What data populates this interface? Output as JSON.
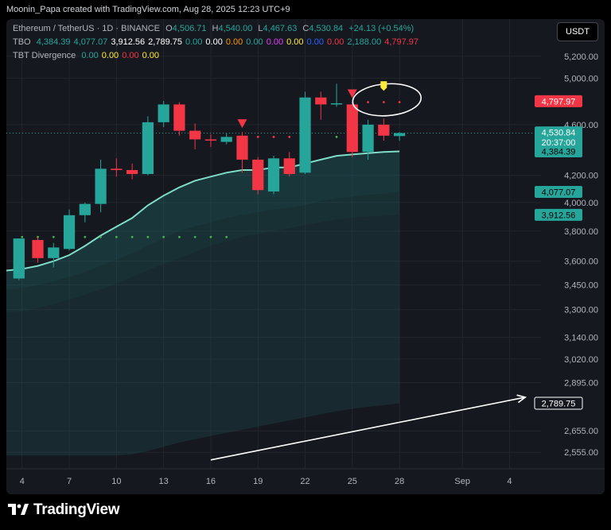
{
  "credit": "Moonin_Papa created with TradingView.com, Aug 28, 2025 12:23 UTC+9",
  "legend": {
    "symbol": "Ethereum / TetherUS · 1D · BINANCE",
    "o_label": "O",
    "o_value": "4,506.71",
    "h_label": "H",
    "h_value": "4,540.00",
    "l_label": "L",
    "l_value": "4,467.63",
    "c_label": "C",
    "c_value": "4,530.84",
    "change": "+24.13 (+0.54%)",
    "tbo_name": "TBO",
    "tbo_values": [
      {
        "v": "4,384.39",
        "color": "#26a69a"
      },
      {
        "v": "4,077.07",
        "color": "#26a69a"
      },
      {
        "v": "3,912.56",
        "color": "#ffffff"
      },
      {
        "v": "2,789.75",
        "color": "#ffffff"
      },
      {
        "v": "0.00",
        "color": "#26a69a"
      },
      {
        "v": "0.00",
        "color": "#ffffff"
      },
      {
        "v": "0.00",
        "color": "#ff9800"
      },
      {
        "v": "0.00",
        "color": "#26a69a"
      },
      {
        "v": "0.00",
        "color": "#e040fb"
      },
      {
        "v": "0.00",
        "color": "#ffeb3b"
      },
      {
        "v": "0.00",
        "color": "#2962ff"
      },
      {
        "v": "0.00",
        "color": "#f23645"
      },
      {
        "v": "2,188.00",
        "color": "#26a69a"
      },
      {
        "v": "4,797.97",
        "color": "#f23645"
      }
    ],
    "div_name": "TBT Divergence",
    "div_values": [
      {
        "v": "0.00",
        "color": "#26a69a"
      },
      {
        "v": "0.00",
        "color": "#ffeb3b"
      },
      {
        "v": "0.00",
        "color": "#f23645"
      },
      {
        "v": "0.00",
        "color": "#ffeb3b"
      }
    ]
  },
  "currency_button": "USDT",
  "brand": "TradingView",
  "colors": {
    "up": "#26a69a",
    "down": "#f23645",
    "background": "#16181f",
    "grid": "#22252e",
    "band_line": "#7fdcc8",
    "band_fill": "#26a69a"
  },
  "chart_data": {
    "type": "candlestick",
    "symbol": "ETHUSDT",
    "interval": "1D",
    "y_scale": "log",
    "ylim": [
      2480,
      5560
    ],
    "x_range": [
      3,
      37
    ],
    "grid": true,
    "y_ticks": [
      "5,200.00",
      "5,000.00",
      "4,600.00",
      "4,200.00",
      "4,000.00",
      "3,800.00",
      "3,600.00",
      "3,450.00",
      "3,300.00",
      "3,140.00",
      "3,020.00",
      "2,895.00",
      "2,655.00",
      "2,555.00"
    ],
    "x_ticks": [
      {
        "d": 4,
        "label": "4"
      },
      {
        "d": 7,
        "label": "7"
      },
      {
        "d": 10,
        "label": "10"
      },
      {
        "d": 13,
        "label": "13"
      },
      {
        "d": 16,
        "label": "16"
      },
      {
        "d": 19,
        "label": "19"
      },
      {
        "d": 22,
        "label": "22"
      },
      {
        "d": 25,
        "label": "25"
      },
      {
        "d": 28,
        "label": "28"
      },
      {
        "d": 32,
        "label": "Sep"
      },
      {
        "d": 35,
        "label": "4"
      }
    ],
    "candles": [
      {
        "d": 3.8,
        "o": 3490,
        "h": 3750,
        "l": 3480,
        "c": 3750
      },
      {
        "d": 5,
        "o": 3740,
        "h": 3760,
        "l": 3590,
        "c": 3620
      },
      {
        "d": 6,
        "o": 3620,
        "h": 3720,
        "l": 3560,
        "c": 3690
      },
      {
        "d": 7,
        "o": 3680,
        "h": 3950,
        "l": 3670,
        "c": 3910
      },
      {
        "d": 8,
        "o": 3910,
        "h": 4000,
        "l": 3860,
        "c": 3990
      },
      {
        "d": 9,
        "o": 3990,
        "h": 4320,
        "l": 3930,
        "c": 4250
      },
      {
        "d": 10,
        "o": 4250,
        "h": 4330,
        "l": 4190,
        "c": 4240
      },
      {
        "d": 11,
        "o": 4240,
        "h": 4290,
        "l": 4170,
        "c": 4210
      },
      {
        "d": 12,
        "o": 4210,
        "h": 4670,
        "l": 4200,
        "c": 4620
      },
      {
        "d": 13,
        "o": 4620,
        "h": 4800,
        "l": 4580,
        "c": 4770
      },
      {
        "d": 14,
        "o": 4770,
        "h": 4790,
        "l": 4510,
        "c": 4550
      },
      {
        "d": 15,
        "o": 4550,
        "h": 4610,
        "l": 4400,
        "c": 4480
      },
      {
        "d": 16,
        "o": 4480,
        "h": 4520,
        "l": 4420,
        "c": 4470
      },
      {
        "d": 17,
        "o": 4460,
        "h": 4530,
        "l": 4440,
        "c": 4500
      },
      {
        "d": 18,
        "o": 4510,
        "h": 4540,
        "l": 4220,
        "c": 4320
      },
      {
        "d": 19,
        "o": 4320,
        "h": 4340,
        "l": 4060,
        "c": 4090
      },
      {
        "d": 20,
        "o": 4080,
        "h": 4350,
        "l": 4060,
        "c": 4330
      },
      {
        "d": 21,
        "o": 4330,
        "h": 4380,
        "l": 4190,
        "c": 4210
      },
      {
        "d": 22,
        "o": 4220,
        "h": 4880,
        "l": 4210,
        "c": 4830
      },
      {
        "d": 23,
        "o": 4830,
        "h": 4880,
        "l": 4640,
        "c": 4770
      },
      {
        "d": 24,
        "o": 4770,
        "h": 4950,
        "l": 4750,
        "c": 4780
      },
      {
        "d": 25,
        "o": 4770,
        "h": 4790,
        "l": 4340,
        "c": 4380
      },
      {
        "d": 26,
        "o": 4380,
        "h": 4640,
        "l": 4320,
        "c": 4600
      },
      {
        "d": 27,
        "o": 4600,
        "h": 4650,
        "l": 4470,
        "c": 4510
      },
      {
        "d": 28,
        "o": 4506.71,
        "h": 4540.0,
        "l": 4467.63,
        "c": 4530.84
      }
    ],
    "band": {
      "x": [
        3,
        4,
        5,
        6,
        7,
        8,
        9,
        10,
        11,
        12,
        13,
        14,
        15,
        16,
        17,
        18,
        19,
        20,
        21,
        22,
        23,
        24,
        25,
        26,
        27,
        28
      ],
      "line": [
        3540,
        3550,
        3570,
        3600,
        3640,
        3700,
        3770,
        3830,
        3890,
        3980,
        4050,
        4110,
        4160,
        4190,
        4220,
        4240,
        4240,
        4260,
        4260,
        4290,
        4320,
        4350,
        4360,
        4370,
        4380,
        4384.39
      ],
      "level2": [
        3420,
        3430,
        3450,
        3470,
        3500,
        3530,
        3570,
        3610,
        3650,
        3700,
        3750,
        3800,
        3830,
        3860,
        3890,
        3910,
        3930,
        3950,
        3960,
        3980,
        4010,
        4030,
        4040,
        4055,
        4065,
        4077.07
      ],
      "level3": [
        3280,
        3290,
        3310,
        3330,
        3360,
        3390,
        3420,
        3460,
        3500,
        3540,
        3580,
        3620,
        3660,
        3700,
        3730,
        3760,
        3780,
        3800,
        3820,
        3840,
        3860,
        3880,
        3890,
        3900,
        3905,
        3912.56
      ],
      "level4": [
        2540,
        2540,
        2540,
        2540,
        2540,
        2540,
        2540,
        2540,
        2545,
        2560,
        2580,
        2600,
        2615,
        2630,
        2645,
        2660,
        2675,
        2690,
        2705,
        2720,
        2735,
        2750,
        2762,
        2772,
        2780,
        2789.75
      ]
    },
    "dots_green": {
      "y": 3760,
      "d": [
        4,
        5,
        6,
        7,
        8,
        9,
        10,
        11,
        12,
        13,
        14,
        15,
        16,
        17
      ]
    },
    "dots_red_low": {
      "y": 4500,
      "d": [
        18,
        19,
        20,
        21
      ]
    },
    "dots_green_low": {
      "y": 4500,
      "d": [
        24,
        25
      ]
    },
    "dots_red_high": {
      "y": 4790,
      "d": [
        26,
        27,
        28
      ]
    },
    "sell_markers": [
      18,
      25
    ],
    "price_labels": [
      {
        "v": 4797.97,
        "text": "4,797.97",
        "bg": "#f23645",
        "fg": "#ffffff"
      },
      {
        "v": 4540.0,
        "text": "4,530.84",
        "sub": "20:37:00",
        "bg": "#26a69a",
        "fg": "#ffffff"
      },
      {
        "v": 4384.39,
        "text": "4,384.39",
        "bg": "#26a69a",
        "fg": "#000000"
      },
      {
        "v": 4077.07,
        "text": "4,077.07",
        "bg": "#26a69a",
        "fg": "#000000"
      },
      {
        "v": 3912.56,
        "text": "3,912.56",
        "bg": "#26a69a",
        "fg": "#000000"
      },
      {
        "v": 2789.75,
        "text": "2,789.75",
        "bg": "#16181f",
        "fg": "#ffffff",
        "border": "#ffffff"
      }
    ],
    "last_price": 4530.84,
    "trend_arrow": {
      "from": {
        "d": 16,
        "v": 2520
      },
      "to": {
        "d": 36,
        "v": 2820
      }
    },
    "annotation_ellipse": {
      "d": 27.2,
      "v": 4810
    },
    "annotation_marker": {
      "d": 27,
      "v": 4930
    }
  }
}
